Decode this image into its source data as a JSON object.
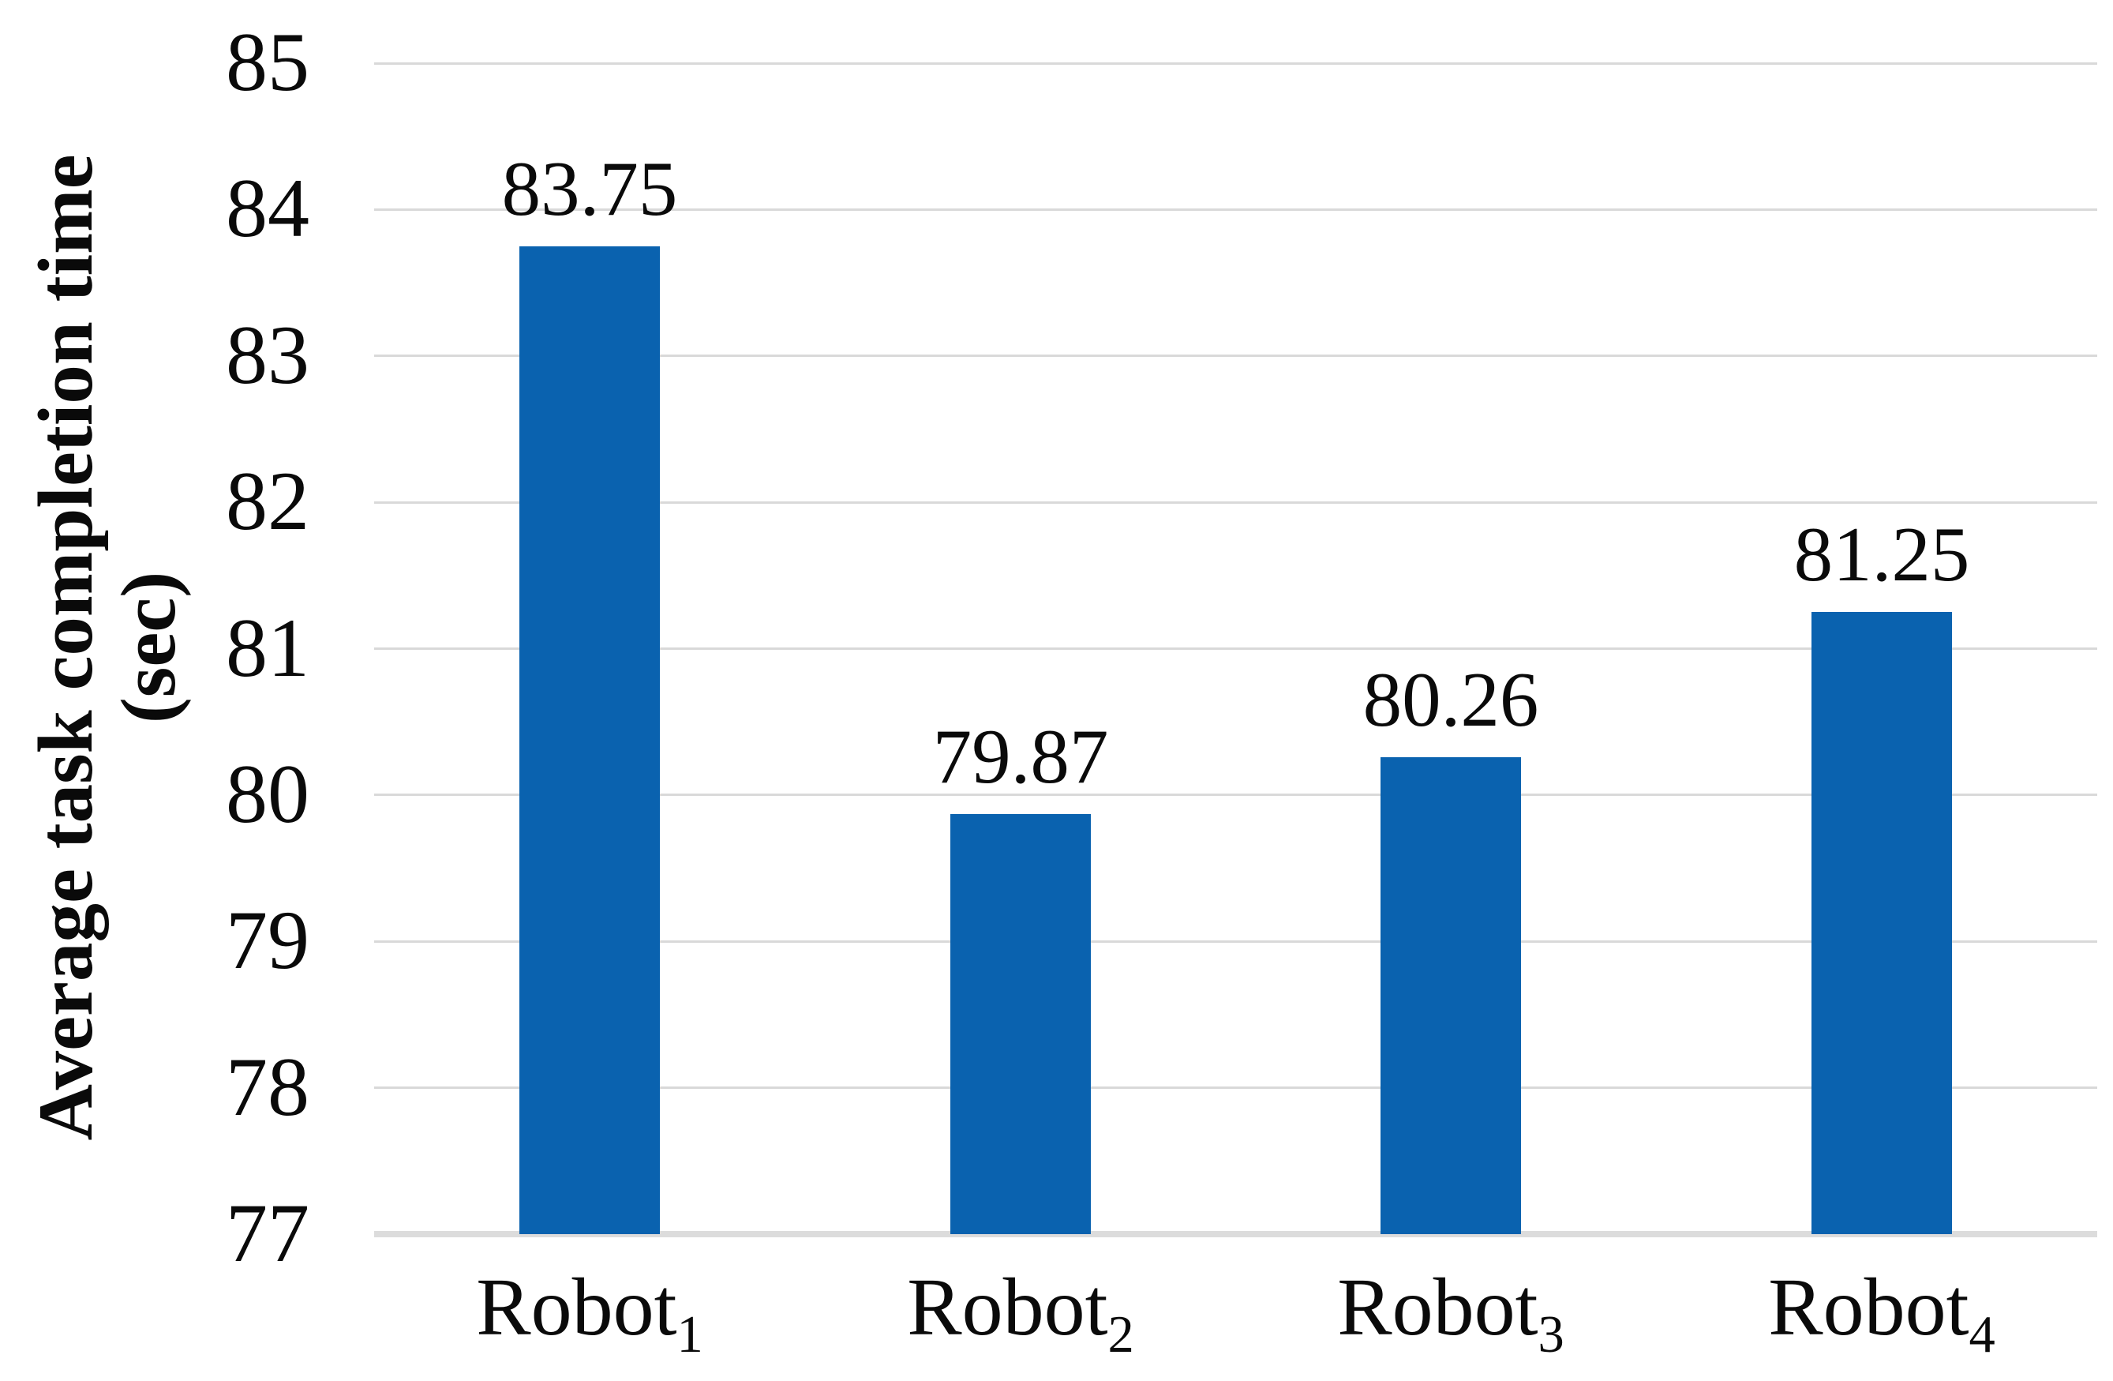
{
  "chart_data": {
    "type": "bar",
    "title": "",
    "xlabel": "",
    "ylabel": "Average task completion time (sec)",
    "ylabel_line1": "Average task completion time",
    "ylabel_line2": "(sec)",
    "categories": [
      "Robot1",
      "Robot2",
      "Robot3",
      "Robot4"
    ],
    "categories_rich": [
      {
        "base": "Robot",
        "sub": "1"
      },
      {
        "base": "Robot",
        "sub": "2"
      },
      {
        "base": "Robot",
        "sub": "3"
      },
      {
        "base": "Robot",
        "sub": "4"
      }
    ],
    "series": [
      {
        "name": "Average task completion time (sec)",
        "values": [
          83.75,
          79.87,
          80.26,
          81.25
        ]
      }
    ],
    "values": [
      83.75,
      79.87,
      80.26,
      81.25
    ],
    "value_labels": [
      "83.75",
      "79.87",
      "80.26",
      "81.25"
    ],
    "yticks": [
      "85",
      "84",
      "83",
      "82",
      "81",
      "80",
      "79",
      "78",
      "77"
    ],
    "ylim": [
      77,
      85
    ],
    "grid": true,
    "legend_position": "none",
    "colors": {
      "bar": "#0A62AF",
      "gridline": "#D9D9D9",
      "axis_line": "#DCDCDC",
      "text": "#0A0A0A",
      "background": "#FFFFFF"
    }
  }
}
